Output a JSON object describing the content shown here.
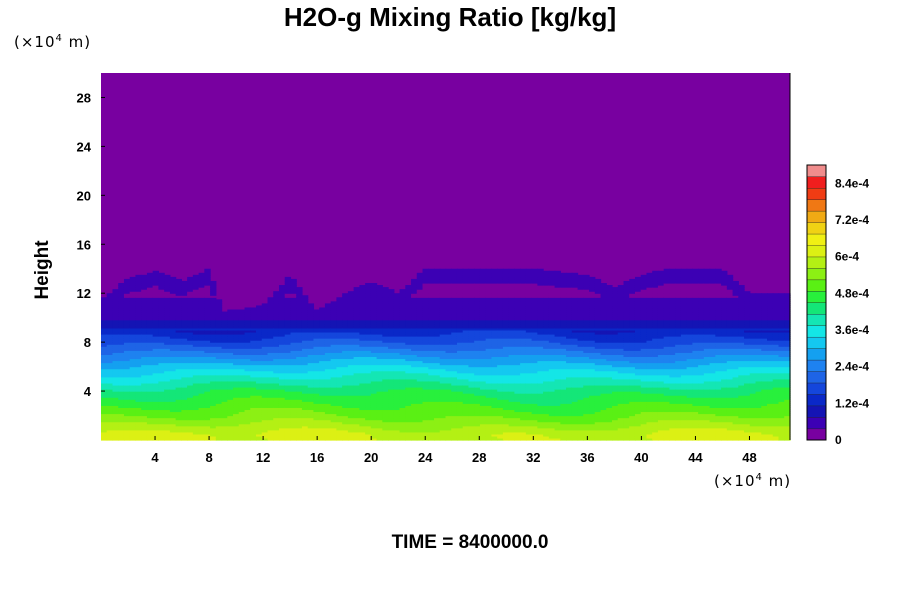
{
  "chart_data": {
    "type": "heatmap",
    "title": "H2O-g Mixing Ratio [kg/kg]",
    "ylabel": "Height",
    "xlabel": "",
    "y_unit": {
      "base": "(×10",
      "exp": "4",
      "tail": " m)"
    },
    "x_unit": {
      "base": "(×10",
      "exp": "4",
      "tail": " m)"
    },
    "xlim": [
      0,
      51
    ],
    "ylim": [
      0,
      30
    ],
    "x_ticks": [
      4,
      8,
      12,
      16,
      20,
      24,
      28,
      32,
      36,
      40,
      44,
      48
    ],
    "y_ticks": [
      4,
      8,
      12,
      16,
      20,
      24,
      28
    ],
    "x_tick_labels": [
      "4",
      "8",
      "12",
      "16",
      "20",
      "24",
      "28",
      "32",
      "36",
      "40",
      "44",
      "48"
    ],
    "y_tick_labels": [
      "4",
      "8",
      "12",
      "16",
      "20",
      "24",
      "28"
    ],
    "colorbar": {
      "min": 0,
      "max": 0.0009,
      "levels": 24,
      "tick_values": [
        0,
        0.00012,
        0.00024,
        0.00036,
        0.00048,
        0.0006,
        0.00072,
        0.00084
      ],
      "tick_labels": [
        "0",
        "1.2e-4",
        "2.4e-4",
        "3.6e-4",
        "4.8e-4",
        "6e-4",
        "7.2e-4",
        "8.4e-4"
      ],
      "colors": [
        "#7800a0",
        "#3c00b4",
        "#1414b4",
        "#0a28c8",
        "#1446dc",
        "#1e64e6",
        "#1e82f0",
        "#14a0f0",
        "#14c8f0",
        "#14e6e6",
        "#14e6b4",
        "#14e678",
        "#28f03c",
        "#5af014",
        "#8cf014",
        "#b4f014",
        "#dcf014",
        "#f0f014",
        "#f0d214",
        "#f0aa14",
        "#f07814",
        "#f03c14",
        "#f01e1e",
        "#f08c8c"
      ]
    },
    "field_profile": {
      "description_levels_by_height": [
        {
          "height": 0.5,
          "value": 0.0006
        },
        {
          "height": 2,
          "value": 0.00052
        },
        {
          "height": 4,
          "value": 0.00044
        },
        {
          "height": 6,
          "value": 0.00032
        },
        {
          "height": 8,
          "value": 0.00018
        },
        {
          "height": 10,
          "value": 7e-05
        },
        {
          "height": 12,
          "value": 3e-05
        },
        {
          "height": 14,
          "value": 0.0
        }
      ],
      "top_of_moist_layer": [
        {
          "x": 0,
          "y": 11.5
        },
        {
          "x": 2,
          "y": 13.2
        },
        {
          "x": 4,
          "y": 13.8
        },
        {
          "x": 6,
          "y": 13.0
        },
        {
          "x": 8,
          "y": 14.0
        },
        {
          "x": 9,
          "y": 10.5
        },
        {
          "x": 12,
          "y": 11.0
        },
        {
          "x": 14,
          "y": 13.5
        },
        {
          "x": 16,
          "y": 10.5
        },
        {
          "x": 18,
          "y": 12.0
        },
        {
          "x": 20,
          "y": 13.0
        },
        {
          "x": 22,
          "y": 12.0
        },
        {
          "x": 24,
          "y": 14.0
        },
        {
          "x": 28,
          "y": 14.0
        },
        {
          "x": 32,
          "y": 14.0
        },
        {
          "x": 36,
          "y": 13.5
        },
        {
          "x": 38,
          "y": 12.5
        },
        {
          "x": 40,
          "y": 13.5
        },
        {
          "x": 42,
          "y": 14.0
        },
        {
          "x": 46,
          "y": 14.0
        },
        {
          "x": 48,
          "y": 12.0
        },
        {
          "x": 51,
          "y": 12.0
        }
      ]
    }
  },
  "footer": {
    "time_label": "TIME = 8400000.0"
  }
}
